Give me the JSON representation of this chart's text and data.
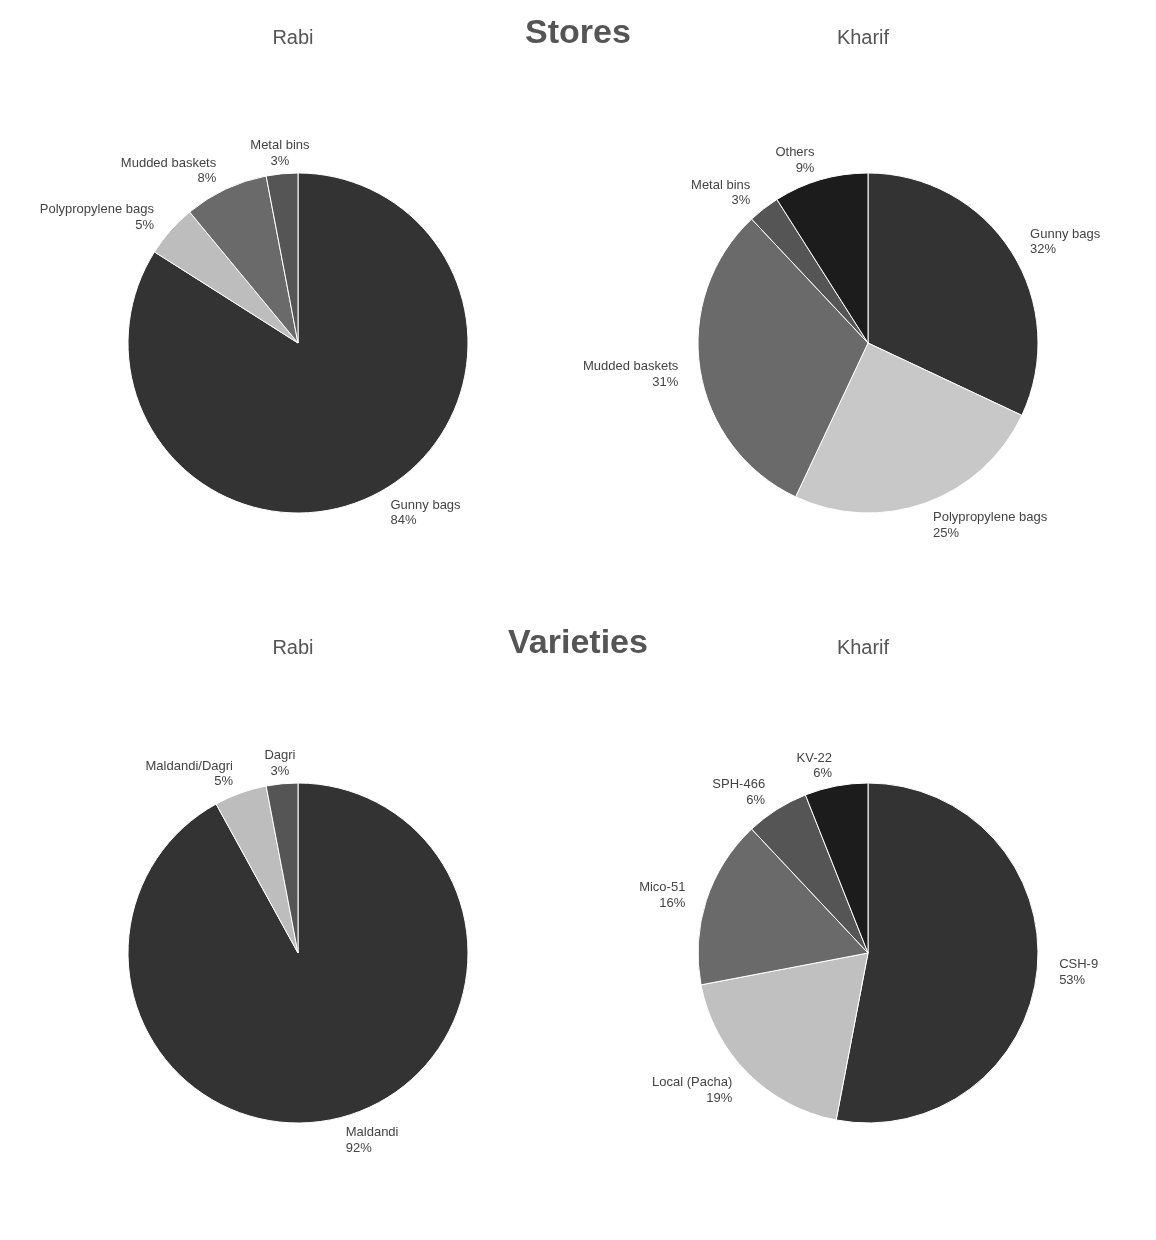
{
  "chart_data": [
    {
      "type": "pie",
      "title": "Rabi",
      "annotations": [
        "Stores"
      ],
      "categories": [
        "Gunny bags",
        "Polypropylene bags",
        "Mudded baskets",
        "Metal bins"
      ],
      "values": [
        84,
        5,
        8,
        3
      ],
      "value_labels": [
        "84%",
        "5%",
        "8%",
        "3%"
      ],
      "colors": [
        "#333333",
        "#bdbdbd",
        "#6a6a6a",
        "#555555"
      ]
    },
    {
      "type": "pie",
      "title": "Kharif",
      "categories": [
        "Gunny bags",
        "Polypropylene bags",
        "Mudded baskets",
        "Metal bins",
        "Others"
      ],
      "values": [
        32,
        25,
        31,
        3,
        9
      ],
      "value_labels": [
        "32%",
        "25%",
        "31%",
        "3%",
        "9%"
      ],
      "colors": [
        "#333333",
        "#c8c8c8",
        "#6a6a6a",
        "#555555",
        "#1c1c1c"
      ]
    },
    {
      "type": "pie",
      "title": "Rabi",
      "annotations": [
        "Varieties"
      ],
      "categories": [
        "Maldandi",
        "Maldandi/Dagri",
        "Dagri"
      ],
      "values": [
        92,
        5,
        3
      ],
      "value_labels": [
        "92%",
        "5%",
        "3%"
      ],
      "colors": [
        "#333333",
        "#bdbdbd",
        "#555555"
      ]
    },
    {
      "type": "pie",
      "title": "Kharif",
      "categories": [
        "CSH-9",
        "Local (Pacha)",
        "Mico-51",
        "SPH-466",
        "KV-22"
      ],
      "values": [
        53,
        19,
        16,
        6,
        6
      ],
      "value_labels": [
        "53%",
        "19%",
        "16%",
        "6%",
        "6%"
      ],
      "colors": [
        "#333333",
        "#c0c0c0",
        "#6a6a6a",
        "#555555",
        "#1c1c1c"
      ]
    }
  ]
}
